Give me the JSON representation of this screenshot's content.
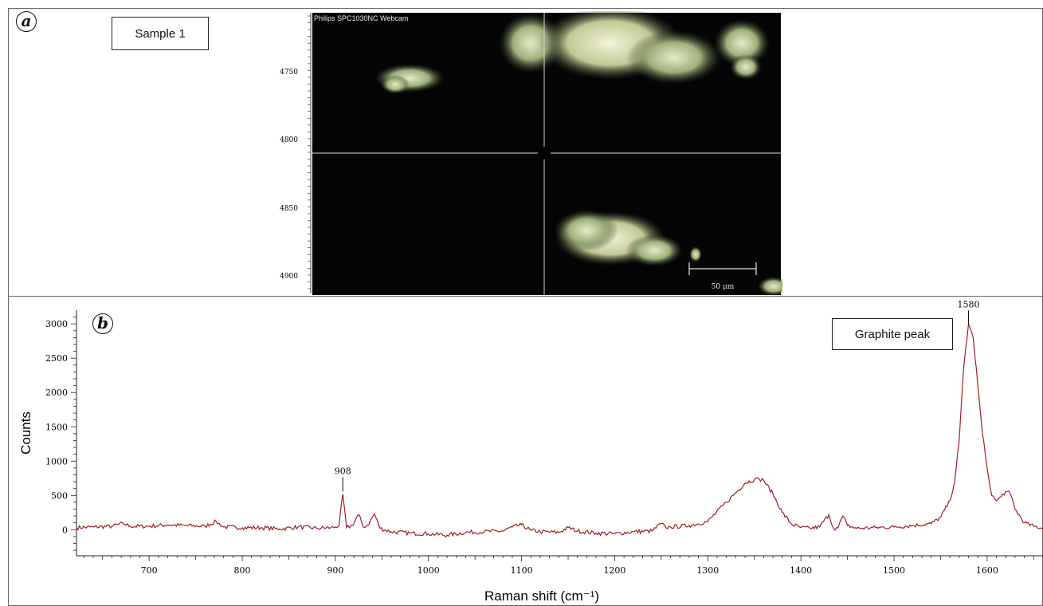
{
  "panel_a": {
    "letter": "a",
    "label": "Sample 1",
    "camera_caption": "Philips SPC1030NC Webcam",
    "scale_bar": "50 μm",
    "y_ticks": [
      "4750",
      "4800",
      "4850",
      "4900"
    ]
  },
  "panel_b": {
    "letter": "b",
    "label": "Graphite peak"
  },
  "chart_data": {
    "type": "line",
    "xlabel": "Raman shift (cm⁻¹)",
    "ylabel": "Counts",
    "xlim": [
      622,
      1660
    ],
    "ylim": [
      -380,
      3200
    ],
    "x_ticks": [
      700,
      800,
      900,
      1000,
      1100,
      1200,
      1300,
      1400,
      1500,
      1600
    ],
    "y_ticks": [
      0,
      500,
      1000,
      1500,
      2000,
      2500,
      3000
    ],
    "grid": false,
    "line_color": "#a01e22",
    "annotations": [
      {
        "x": 908,
        "y": 720,
        "text": "908"
      },
      {
        "x": 1580,
        "y": 3150,
        "text": "1580"
      }
    ],
    "series": [
      {
        "x": [
          622,
          640,
          660,
          672,
          680,
          700,
          720,
          740,
          760,
          772,
          780,
          800,
          820,
          840,
          860,
          880,
          895,
          900,
          904,
          908,
          912,
          918,
          925,
          930,
          935,
          942,
          948,
          960,
          980,
          1000,
          1020,
          1040,
          1060,
          1080,
          1090,
          1100,
          1110,
          1120,
          1140,
          1150,
          1160,
          1180,
          1200,
          1220,
          1240,
          1250,
          1255,
          1260,
          1280,
          1300,
          1320,
          1340,
          1350,
          1355,
          1360,
          1370,
          1380,
          1390,
          1400,
          1410,
          1420,
          1430,
          1435,
          1440,
          1445,
          1450,
          1460,
          1480,
          1500,
          1520,
          1540,
          1550,
          1560,
          1565,
          1570,
          1575,
          1580,
          1585,
          1590,
          1595,
          1598,
          1600,
          1605,
          1610,
          1615,
          1620,
          1625,
          1630,
          1640,
          1650,
          1660
        ],
        "y": [
          30,
          40,
          50,
          90,
          50,
          50,
          70,
          60,
          50,
          120,
          40,
          30,
          30,
          10,
          40,
          20,
          30,
          40,
          60,
          520,
          30,
          60,
          220,
          40,
          70,
          230,
          20,
          -30,
          -50,
          -60,
          -80,
          -40,
          -30,
          -20,
          40,
          70,
          -10,
          -30,
          -40,
          30,
          -20,
          -50,
          -60,
          -30,
          -20,
          90,
          30,
          40,
          60,
          120,
          400,
          680,
          730,
          740,
          720,
          520,
          250,
          80,
          30,
          20,
          40,
          220,
          20,
          30,
          200,
          60,
          20,
          30,
          40,
          60,
          90,
          180,
          420,
          700,
          1300,
          2400,
          3000,
          2800,
          2100,
          1400,
          1100,
          900,
          500,
          420,
          480,
          560,
          520,
          300,
          100,
          50,
          20
        ]
      }
    ]
  }
}
